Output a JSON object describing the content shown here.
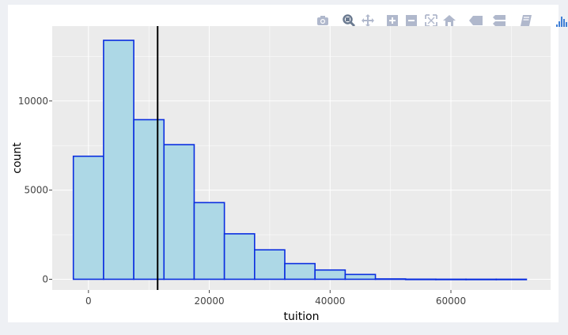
{
  "modebar": {
    "buttons": [
      {
        "id": "camera-icon",
        "active": false
      },
      {
        "id": "zoom-icon",
        "active": true
      },
      {
        "id": "pan-icon",
        "active": false
      },
      {
        "id": "zoom-in-icon",
        "active": false
      },
      {
        "id": "zoom-out-icon",
        "active": false
      },
      {
        "id": "autoscale-icon",
        "active": false
      },
      {
        "id": "home-icon",
        "active": false
      },
      {
        "id": "spike-lines-icon",
        "active": false
      },
      {
        "id": "compare-hover-icon",
        "active": false
      },
      {
        "id": "book-icon",
        "active": false
      },
      {
        "id": "plotly-logo-icon",
        "active": false
      }
    ],
    "icon_color": "#b0b8cc",
    "active_color": "#6b7a90",
    "logo_color": "#3f7fd6"
  },
  "chart_data": {
    "type": "bar",
    "xlabel": "tuition",
    "ylabel": "count",
    "bin_width": 5000,
    "bins": [
      {
        "x0": -2500,
        "x1": 2500,
        "count": 6900
      },
      {
        "x0": 2500,
        "x1": 7500,
        "count": 13400
      },
      {
        "x0": 7500,
        "x1": 12500,
        "count": 8950
      },
      {
        "x0": 12500,
        "x1": 17500,
        "count": 7550
      },
      {
        "x0": 17500,
        "x1": 22500,
        "count": 4300
      },
      {
        "x0": 22500,
        "x1": 27500,
        "count": 2550
      },
      {
        "x0": 27500,
        "x1": 32500,
        "count": 1650
      },
      {
        "x0": 32500,
        "x1": 37500,
        "count": 880
      },
      {
        "x0": 37500,
        "x1": 42500,
        "count": 520
      },
      {
        "x0": 42500,
        "x1": 47500,
        "count": 270
      },
      {
        "x0": 47500,
        "x1": 52500,
        "count": 20
      },
      {
        "x0": 52500,
        "x1": 57500,
        "count": 5
      },
      {
        "x0": 57500,
        "x1": 62500,
        "count": 2
      },
      {
        "x0": 62500,
        "x1": 67500,
        "count": 1
      },
      {
        "x0": 67500,
        "x1": 72500,
        "count": 1
      }
    ],
    "vline_x": 11450,
    "x_ticks": [
      0,
      20000,
      40000,
      60000
    ],
    "y_ticks": [
      0,
      5000,
      10000
    ],
    "xlim": [
      -6000,
      76500
    ],
    "ylim": [
      -600,
      14200
    ],
    "bar_fill": "#add8e6",
    "bar_stroke": "#0a2ee0",
    "vline_color": "#000000",
    "panel_bg": "#ebebeb",
    "grid_color": "#ffffff",
    "grid": true
  }
}
